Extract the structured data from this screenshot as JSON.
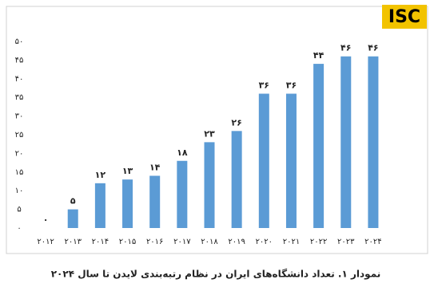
{
  "logo": "ISC",
  "chart_data": {
    "type": "bar",
    "title": "نمودار ۱. تعداد دانشگاه‌های ایران در نظام رتبه‌بندی لایدن تا سال ۲۰۲۴",
    "categories": [
      "۲۰۱۲",
      "۲۰۱۳",
      "۲۰۱۴",
      "۲۰۱۵",
      "۲۰۱۶",
      "۲۰۱۷",
      "۲۰۱۸",
      "۲۰۱۹",
      "۲۰۲۰",
      "۲۰۲۱",
      "۲۰۲۲",
      "۲۰۲۳",
      "۲۰۲۴"
    ],
    "values": [
      0,
      5,
      12,
      13,
      14,
      18,
      23,
      26,
      36,
      36,
      44,
      46,
      46
    ],
    "value_labels": [
      "۰",
      "۵",
      "۱۲",
      "۱۳",
      "۱۴",
      "۱۸",
      "۲۳",
      "۲۶",
      "۳۶",
      "۳۶",
      "۴۴",
      "۴۶",
      "۴۶"
    ],
    "color": "#5b9bd5",
    "ylim": [
      0,
      50
    ],
    "yticks": [
      {
        "value": 0,
        "label": "۰"
      },
      {
        "value": 5,
        "label": "۵"
      },
      {
        "value": 10,
        "label": "۱۰"
      },
      {
        "value": 15,
        "label": "۱۵"
      },
      {
        "value": 20,
        "label": "۲۰"
      },
      {
        "value": 25,
        "label": "۲۵"
      },
      {
        "value": 30,
        "label": "۳۰"
      },
      {
        "value": 35,
        "label": "۳۵"
      },
      {
        "value": 40,
        "label": "۴۰"
      },
      {
        "value": 45,
        "label": "۴۵"
      },
      {
        "value": 50,
        "label": "۵۰"
      }
    ],
    "grid": false
  }
}
